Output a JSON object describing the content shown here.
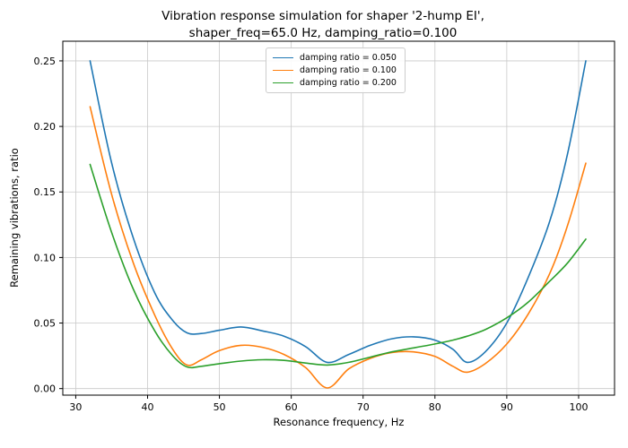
{
  "chart_data": {
    "type": "line",
    "title_lines": [
      "Vibration response simulation for shaper '2-hump EI',",
      "shaper_freq=65.0 Hz, damping_ratio=0.100"
    ],
    "xlabel": "Resonance frequency, Hz",
    "ylabel": "Remaining vibrations, ratio",
    "xlim": [
      28.2,
      105.0
    ],
    "ylim": [
      -0.005,
      0.265
    ],
    "xticks": [
      30,
      40,
      50,
      60,
      70,
      80,
      90,
      100
    ],
    "yticks": [
      0.0,
      0.05,
      0.1,
      0.15,
      0.2,
      0.25
    ],
    "grid": true,
    "legend_position": "upper center",
    "x": [
      32,
      35,
      38,
      41,
      43.5,
      45.5,
      47.5,
      50,
      53,
      56,
      59,
      62,
      65,
      68,
      71,
      74,
      77,
      80,
      82.5,
      84.5,
      87,
      90,
      93,
      96,
      98.5,
      101
    ],
    "series": [
      {
        "name": "damping ratio = 0.050",
        "color": "#1f77b4",
        "values": [
          0.25,
          0.172,
          0.115,
          0.073,
          0.052,
          0.0425,
          0.042,
          0.0445,
          0.047,
          0.044,
          0.04,
          0.032,
          0.02,
          0.026,
          0.033,
          0.038,
          0.0395,
          0.037,
          0.03,
          0.02,
          0.028,
          0.05,
          0.085,
          0.128,
          0.18,
          0.25
        ]
      },
      {
        "name": "damping ratio = 0.100",
        "color": "#ff7f0e",
        "values": [
          0.215,
          0.148,
          0.096,
          0.056,
          0.03,
          0.018,
          0.022,
          0.029,
          0.033,
          0.0315,
          0.026,
          0.016,
          0.0005,
          0.015,
          0.023,
          0.0275,
          0.028,
          0.0245,
          0.017,
          0.0125,
          0.019,
          0.034,
          0.057,
          0.088,
          0.125,
          0.172
        ]
      },
      {
        "name": "damping ratio = 0.200",
        "color": "#2ca02c",
        "values": [
          0.171,
          0.119,
          0.076,
          0.044,
          0.025,
          0.0165,
          0.017,
          0.019,
          0.021,
          0.022,
          0.0215,
          0.0195,
          0.018,
          0.02,
          0.024,
          0.028,
          0.031,
          0.034,
          0.037,
          0.04,
          0.045,
          0.054,
          0.066,
          0.082,
          0.096,
          0.114
        ]
      }
    ],
    "style": {
      "grid_color": "#c9c9c9",
      "spine_color": "#000000",
      "background": "#ffffff"
    }
  }
}
